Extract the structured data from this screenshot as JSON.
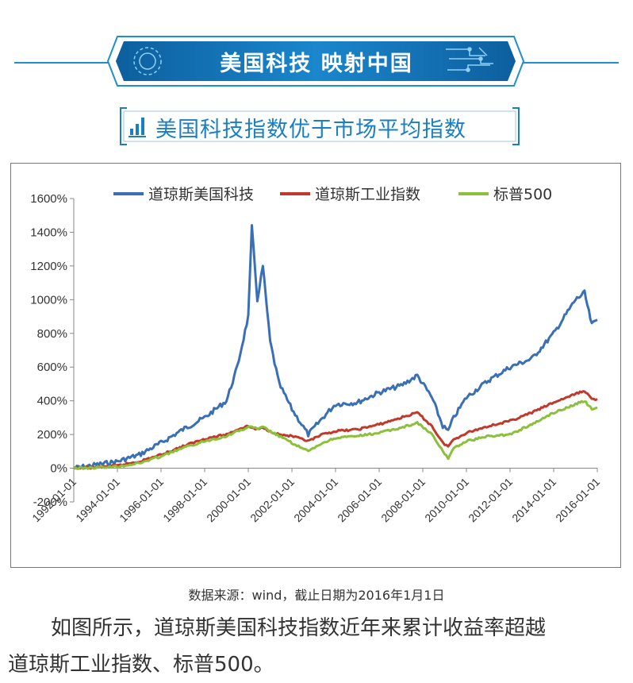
{
  "header": {
    "banner_title": "美国科技  映射中国",
    "subtitle": "美国科技指数优于市场平均指数"
  },
  "colors": {
    "accent": "#1a7fc2",
    "banner_dark": "#0d5f9e",
    "banner_light": "#1f8fcf"
  },
  "icons": {
    "subtitle_icon": "bar-chart-icon",
    "banner_decor": "circuit-icon"
  },
  "chart_data": {
    "type": "line",
    "title": "",
    "xlabel": "",
    "ylabel": "",
    "ylim": [
      -200,
      1600
    ],
    "yticks": [
      "-200%",
      "0%",
      "200%",
      "400%",
      "600%",
      "800%",
      "1000%",
      "1200%",
      "1400%",
      "1600%"
    ],
    "ytick_values": [
      -200,
      0,
      200,
      400,
      600,
      800,
      1000,
      1200,
      1400,
      1600
    ],
    "xlim": [
      "1992-01-01",
      "2016-01-01"
    ],
    "xticks": [
      "1992-01-01",
      "1994-01-01",
      "1996-01-01",
      "1998-01-01",
      "2000-01-01",
      "2002-01-01",
      "2004-01-01",
      "2006-01-01",
      "2008-01-01",
      "2010-01-01",
      "2012-01-01",
      "2014-01-01",
      "2016-01-01"
    ],
    "grid": false,
    "legend": "top",
    "x": [
      "1992-01-01",
      "1993-01-01",
      "1994-01-01",
      "1995-01-01",
      "1996-01-01",
      "1997-01-01",
      "1998-01-01",
      "1999-01-01",
      "1999-07-01",
      "2000-01-01",
      "2000-03-01",
      "2000-06-01",
      "2000-09-01",
      "2001-01-01",
      "2001-06-01",
      "2002-01-01",
      "2002-10-01",
      "2003-06-01",
      "2004-01-01",
      "2005-01-01",
      "2006-01-01",
      "2007-01-01",
      "2007-10-01",
      "2008-06-01",
      "2008-12-01",
      "2009-03-01",
      "2009-06-01",
      "2010-01-01",
      "2011-01-01",
      "2012-01-01",
      "2013-01-01",
      "2014-01-01",
      "2015-01-01",
      "2015-06-01",
      "2015-10-01",
      "2016-01-01"
    ],
    "series": [
      {
        "name": "道琼斯美国科技",
        "color": "#3b6fb5",
        "values": [
          0,
          20,
          40,
          80,
          150,
          230,
          300,
          400,
          600,
          900,
          1430,
          1000,
          1200,
          750,
          500,
          350,
          200,
          300,
          380,
          390,
          450,
          490,
          550,
          420,
          250,
          220,
          300,
          420,
          520,
          600,
          650,
          800,
          1000,
          1040,
          850,
          880
        ]
      },
      {
        "name": "道琼斯工业指数",
        "color": "#c0392b",
        "values": [
          0,
          5,
          15,
          40,
          80,
          130,
          175,
          200,
          230,
          250,
          240,
          230,
          240,
          220,
          200,
          190,
          160,
          200,
          220,
          230,
          260,
          300,
          330,
          250,
          150,
          130,
          170,
          210,
          250,
          280,
          330,
          390,
          440,
          460,
          410,
          410
        ]
      },
      {
        "name": "标普500",
        "color": "#8cc03b",
        "values": [
          0,
          3,
          10,
          30,
          70,
          120,
          160,
          190,
          220,
          240,
          250,
          230,
          245,
          220,
          190,
          150,
          100,
          150,
          180,
          190,
          210,
          240,
          270,
          200,
          100,
          60,
          120,
          160,
          190,
          200,
          260,
          330,
          380,
          400,
          350,
          360
        ]
      }
    ]
  },
  "source_note": "数据来源：wind，截止日期为2016年1月1日",
  "body_text": {
    "line1": "如图所示，道琼斯美国科技指数近年来累计收益率超越",
    "line2": "道琼斯工业指数、标普500。"
  }
}
